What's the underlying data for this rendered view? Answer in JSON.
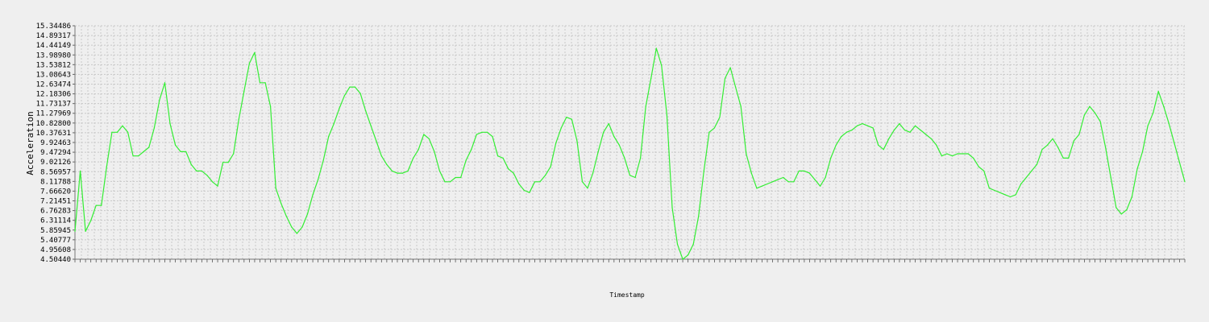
{
  "chart_data": {
    "type": "line",
    "title": "",
    "xlabel": "Timestamp",
    "ylabel": "Acceleration",
    "grid": true,
    "legend": "none",
    "line_color": "#33ee33",
    "background_color": "#efefef",
    "grid_color": "#c8c8c8",
    "ylim": [
      4.5044,
      15.34486
    ],
    "y_ticks": [
      "4.50440",
      "4.95608",
      "5.40777",
      "5.85945",
      "6.31114",
      "6.76283",
      "7.21451",
      "7.66620",
      "8.11788",
      "8.56957",
      "9.02126",
      "9.47294",
      "9.92463",
      "10.37631",
      "10.82800",
      "11.27969",
      "11.73137",
      "12.18306",
      "12.63474",
      "13.08643",
      "13.53812",
      "13.98980",
      "14.44149",
      "14.89317",
      "15.34486"
    ],
    "x_tick_labels_note": "",
    "series": [
      {
        "values": [
          5.8,
          8.6,
          5.8,
          6.3,
          7.0,
          7.0,
          8.8,
          10.4,
          10.4,
          10.7,
          10.4,
          9.3,
          9.3,
          9.5,
          9.7,
          10.6,
          11.9,
          12.7,
          10.8,
          9.8,
          9.5,
          9.5,
          8.9,
          8.6,
          8.6,
          8.4,
          8.1,
          7.9,
          9.0,
          9.0,
          9.4,
          11.0,
          12.3,
          13.6,
          14.1,
          12.7,
          12.7,
          11.6,
          7.8,
          7.1,
          6.5,
          6.0,
          5.7,
          6.0,
          6.6,
          7.5,
          8.2,
          9.1,
          10.2,
          10.8,
          11.5,
          12.1,
          12.5,
          12.5,
          12.2,
          11.4,
          10.7,
          10.0,
          9.3,
          8.9,
          8.6,
          8.5,
          8.5,
          8.6,
          9.2,
          9.6,
          10.3,
          10.1,
          9.5,
          8.6,
          8.1,
          8.1,
          8.3,
          8.3,
          9.1,
          9.6,
          10.3,
          10.4,
          10.4,
          10.2,
          9.3,
          9.2,
          8.7,
          8.5,
          8.0,
          7.7,
          7.6,
          8.1,
          8.1,
          8.4,
          8.8,
          9.9,
          10.6,
          11.1,
          11.0,
          10.0,
          8.1,
          7.8,
          8.5,
          9.5,
          10.4,
          10.8,
          10.2,
          9.8,
          9.2,
          8.4,
          8.3,
          9.2,
          11.6,
          12.9,
          14.3,
          13.5,
          11.2,
          6.9,
          5.2,
          4.5,
          4.7,
          5.2,
          6.5,
          8.6,
          10.4,
          10.6,
          11.1,
          12.9,
          13.4,
          12.5,
          11.6,
          9.4,
          8.5,
          7.8,
          7.9,
          8.0,
          8.1,
          8.2,
          8.3,
          8.1,
          8.1,
          8.6,
          8.6,
          8.5,
          8.2,
          7.9,
          8.3,
          9.2,
          9.8,
          10.2,
          10.4,
          10.5,
          10.7,
          10.8,
          10.7,
          10.6,
          9.8,
          9.6,
          10.1,
          10.5,
          10.8,
          10.5,
          10.4,
          10.7,
          10.5,
          10.3,
          10.1,
          9.8,
          9.3,
          9.4,
          9.3,
          9.4,
          9.4,
          9.4,
          9.2,
          8.8,
          8.6,
          7.8,
          7.7,
          7.6,
          7.5,
          7.4,
          7.5,
          8.0,
          8.3,
          8.6,
          8.9,
          9.6,
          9.8,
          10.1,
          9.7,
          9.2,
          9.2,
          10.0,
          10.3,
          11.2,
          11.6,
          11.3,
          10.9,
          9.7,
          8.3,
          6.9,
          6.6,
          6.8,
          7.4,
          8.7,
          9.5,
          10.7,
          11.3,
          12.3,
          11.6,
          10.8,
          9.9,
          9.0,
          8.1
        ]
      }
    ]
  }
}
